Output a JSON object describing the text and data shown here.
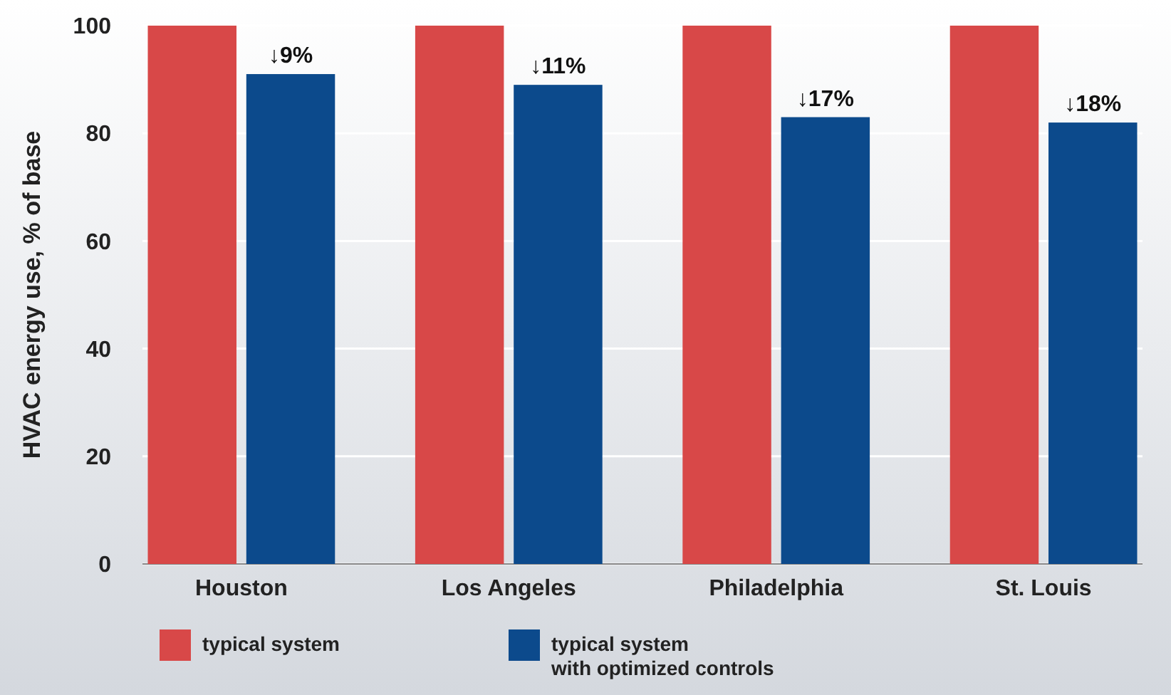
{
  "chart_data": {
    "type": "bar",
    "ylabel": "HVAC energy use, % of base",
    "categories": [
      "Houston",
      "Los Angeles",
      "Philadelphia",
      "St. Louis"
    ],
    "series": [
      {
        "name": "typical system",
        "color": "#d84848",
        "values": [
          100,
          100,
          100,
          100
        ]
      },
      {
        "name": "typical system with optimized controls",
        "color": "#0c4a8c",
        "values": [
          91,
          89,
          83,
          82
        ]
      }
    ],
    "annotations": [
      {
        "text": "↓9%",
        "x": "Houston",
        "y": 91
      },
      {
        "text": "↓11%",
        "x": "Los Angeles",
        "y": 89
      },
      {
        "text": "↓17%",
        "x": "Philadelphia",
        "y": 83
      },
      {
        "text": "↓18%",
        "x": "St. Louis",
        "y": 82
      }
    ],
    "ylim": [
      0,
      100
    ],
    "yticks": [
      0,
      20,
      40,
      60,
      80,
      100
    ],
    "grid": "y",
    "legend": "bottom left"
  }
}
